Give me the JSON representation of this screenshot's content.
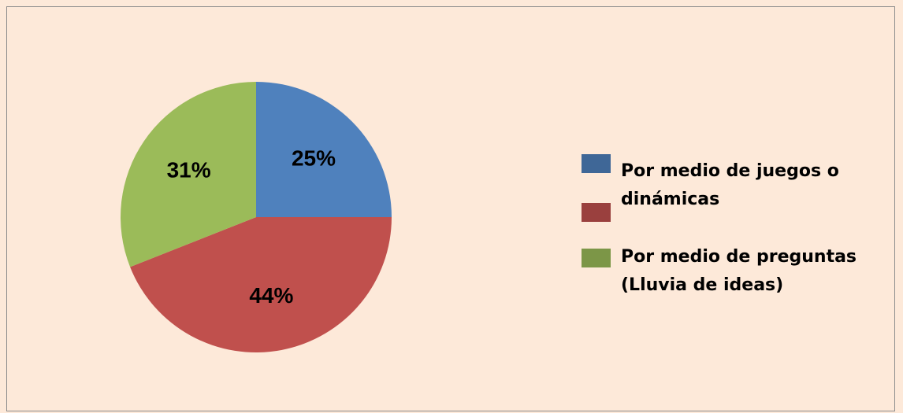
{
  "chart_data": {
    "type": "pie",
    "categories": [
      "Por medio de juegos o dinámicas",
      null,
      "Por medio de preguntas (Lluvia de ideas)"
    ],
    "values": [
      25,
      44,
      31
    ],
    "value_labels": [
      "25%",
      "44%",
      "31%"
    ],
    "colors": [
      "#4f81bd",
      "#c0504d",
      "#9bbb59"
    ],
    "legend": "right"
  }
}
